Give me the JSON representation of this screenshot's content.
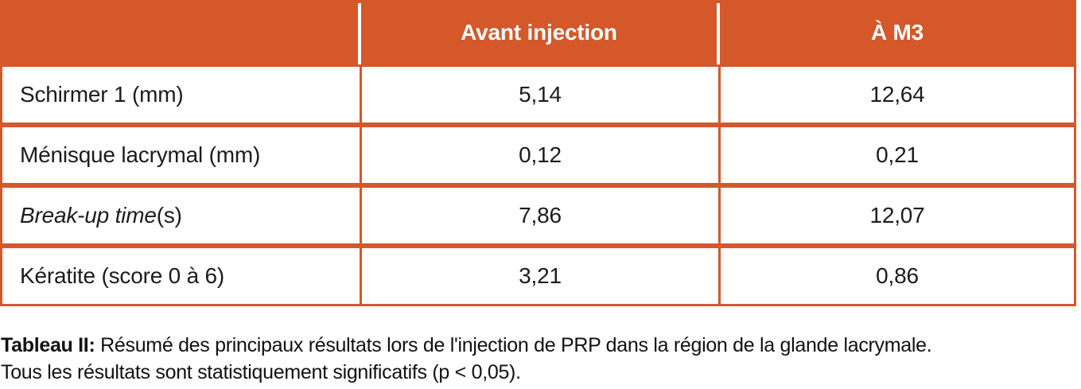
{
  "colors": {
    "accent": "#d4582a",
    "header_text": "#ffffff",
    "body_text": "#1c1c1c",
    "background": "#ffffff"
  },
  "table": {
    "header": {
      "col0": "",
      "col1": "Avant injection",
      "col2": "À M3"
    },
    "rows": [
      {
        "label_italic": "",
        "label": "Schirmer 1 (mm)",
        "avant": "5,14",
        "m3": "12,64"
      },
      {
        "label_italic": "",
        "label": "Ménisque lacrymal (mm)",
        "avant": "0,12",
        "m3": "0,21"
      },
      {
        "label_italic": "Break-up time",
        "label": " (s)",
        "avant": "7,86",
        "m3": "12,07"
      },
      {
        "label_italic": "",
        "label": "Kératite (score 0 à 6)",
        "avant": "3,21",
        "m3": "0,86"
      }
    ]
  },
  "caption": {
    "title_bold": "Tableau II:",
    "line1": " Résumé des principaux résultats lors de l'injection de PRP dans la région de la glande lacrymale.",
    "line2": "Tous les résultats sont statistiquement significatifs (p < 0,05)."
  },
  "chart_data": {
    "type": "table",
    "title": "Tableau II",
    "columns": [
      "",
      "Avant injection",
      "À M3"
    ],
    "categories": [
      "Schirmer 1 (mm)",
      "Ménisque lacrymal (mm)",
      "Break-up time (s)",
      "Kératite (score 0 à 6)"
    ],
    "series": [
      {
        "name": "Avant injection",
        "values": [
          5.14,
          0.12,
          7.86,
          3.21
        ]
      },
      {
        "name": "À M3",
        "values": [
          12.64,
          0.21,
          12.07,
          0.86
        ]
      }
    ],
    "note": "Tous les résultats sont statistiquement significatifs (p < 0,05)."
  }
}
